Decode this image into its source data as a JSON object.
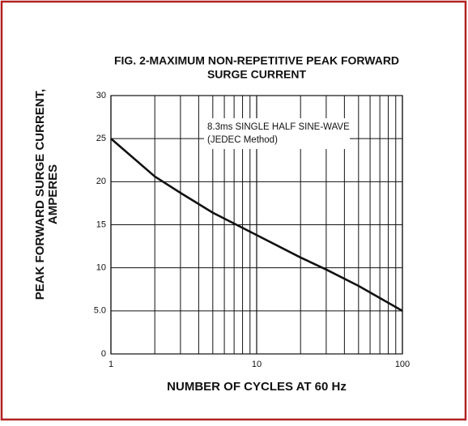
{
  "chart_data": {
    "type": "line",
    "title": [
      "FIG. 2-MAXIMUM NON-REPETITIVE PEAK FORWARD",
      "SURGE CURRENT"
    ],
    "xlabel": "NUMBER OF CYCLES AT 60 Hz",
    "ylabel": [
      "PEAK  FORWARD SURGE CURRENT,",
      "AMPERES"
    ],
    "annotation": [
      "8.3ms SINGLE HALF SINE-WAVE",
      "(JEDEC Method)"
    ],
    "x": [
      1,
      2,
      3,
      5,
      10,
      20,
      30,
      50,
      100
    ],
    "series": [
      {
        "color": "#111111",
        "values": [
          25,
          20.6,
          18.7,
          16.4,
          13.8,
          11.2,
          9.8,
          7.9,
          5
        ]
      }
    ],
    "xscale": "log",
    "xlim": [
      1,
      100
    ],
    "xticks": [
      1,
      10,
      100
    ],
    "xgrid": [
      2,
      3,
      4,
      5,
      6,
      7,
      8,
      9,
      20,
      30,
      40,
      50,
      60,
      70,
      80,
      90
    ],
    "ylim": [
      0,
      30
    ],
    "yticks": [
      0,
      {
        "value": 5,
        "label": "5.0"
      },
      10,
      15,
      20,
      25,
      30
    ],
    "grid": true
  }
}
